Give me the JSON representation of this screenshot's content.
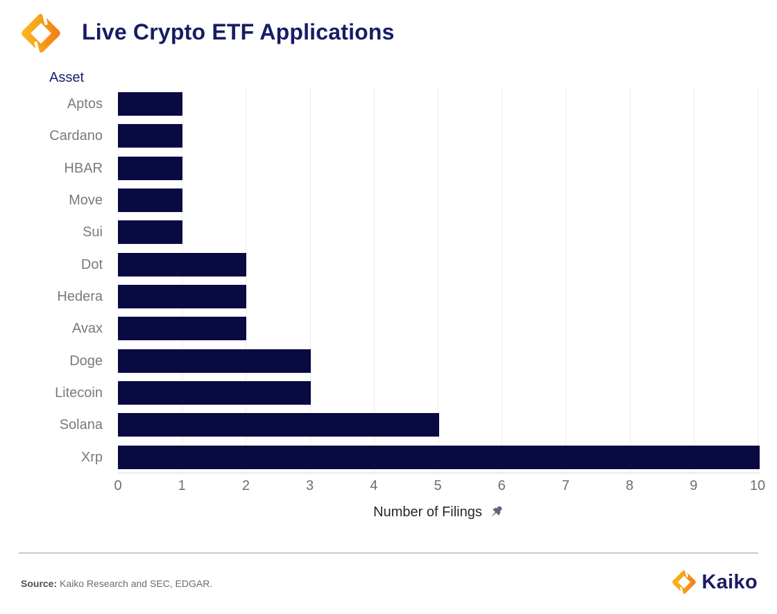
{
  "header": {
    "title": "Live Crypto ETF Applications"
  },
  "chart_data": {
    "type": "bar",
    "orientation": "horizontal",
    "title": "Live Crypto ETF Applications",
    "category_axis_label": "Asset",
    "value_axis_label": "Number of Filings",
    "categories": [
      "Aptos",
      "Cardano",
      "HBAR",
      "Move",
      "Sui",
      "Dot",
      "Hedera",
      "Avax",
      "Doge",
      "Litecoin",
      "Solana",
      "Xrp"
    ],
    "values": [
      1,
      1,
      1,
      1,
      1,
      2,
      2,
      2,
      3,
      3,
      5,
      10
    ],
    "x_ticks": [
      0,
      1,
      2,
      3,
      4,
      5,
      6,
      7,
      8,
      9,
      10
    ],
    "xlim": [
      0,
      10
    ],
    "grid": true,
    "legend": "none",
    "bar_color": "#0a0a42"
  },
  "icons": {
    "pushpin": "pushpin-icon",
    "logo": "kaiko-logo-icon"
  },
  "colors": {
    "title_navy": "#171c66",
    "bar_navy": "#0a0a42",
    "label_gray": "#7a7a7a",
    "brand_orange": "#f28c1b",
    "brand_yellow": "#f9b21d",
    "pin_slate": "#5d6384",
    "gridline": "#ececec"
  },
  "footer": {
    "source_label": "Source:",
    "source_text": " Kaiko Research and SEC, EDGAR.",
    "brand": "Kaiko"
  }
}
